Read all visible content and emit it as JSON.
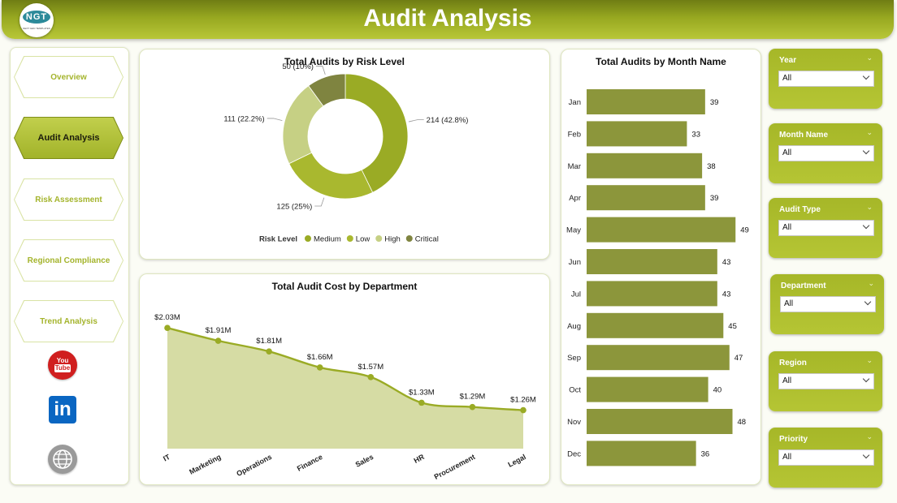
{
  "header": {
    "title": "Audit Analysis",
    "logo_text": "NGT",
    "logo_subtext": "NEXT GEN TEMPLATES"
  },
  "nav": {
    "items": [
      {
        "label": "Overview",
        "active": false
      },
      {
        "label": "Audit Analysis",
        "active": true
      },
      {
        "label": "Risk Assessment",
        "active": false
      },
      {
        "label": "Regional Compliance",
        "active": false
      },
      {
        "label": "Trend Analysis",
        "active": false
      }
    ],
    "social": {
      "youtube_top": "You",
      "youtube_bottom": "Tube",
      "linkedin": "in"
    }
  },
  "slicers": [
    {
      "label": "Year",
      "value": "All"
    },
    {
      "label": "Month Name",
      "value": "All"
    },
    {
      "label": "Audit Type",
      "value": "All"
    },
    {
      "label": "Department",
      "value": "All"
    },
    {
      "label": "Region",
      "value": "All"
    },
    {
      "label": "Priority",
      "value": "All"
    }
  ],
  "colors": {
    "accent": "#a4b42c",
    "medium": "#9aab25",
    "low": "#a9b82f",
    "high": "#c6d084",
    "critical": "#7f8440",
    "bar": "#8c963b",
    "area": "#d6dca4",
    "line": "#9aab25"
  },
  "chart_data": [
    {
      "type": "pie",
      "title": "Total Audits by Risk Level",
      "legend_title": "Risk Level",
      "legend": "bottom",
      "slices": [
        {
          "name": "Medium",
          "value": 214,
          "label": "214 (42.8%)",
          "color": "#9aab25"
        },
        {
          "name": "Low",
          "value": 125,
          "label": "125 (25%)",
          "color": "#a9b82f"
        },
        {
          "name": "High",
          "value": 111,
          "label": "111 (22.2%)",
          "color": "#c6d084"
        },
        {
          "name": "Critical",
          "value": 50,
          "label": "50 (10%)",
          "color": "#7f8440"
        }
      ]
    },
    {
      "type": "area",
      "title": "Total Audit Cost by Department",
      "categories": [
        "IT",
        "Marketing",
        "Operations",
        "Finance",
        "Sales",
        "HR",
        "Procurement",
        "Legal"
      ],
      "values": [
        2.03,
        1.91,
        1.81,
        1.66,
        1.57,
        1.33,
        1.29,
        1.26
      ],
      "labels": [
        "$2.03M",
        "$1.91M",
        "$1.81M",
        "$1.66M",
        "$1.57M",
        "$1.33M",
        "$1.29M",
        "$1.26M"
      ],
      "ylim": [
        0.9,
        2.1
      ]
    },
    {
      "type": "bar",
      "orientation": "horizontal",
      "title": "Total Audits by Month Name",
      "categories": [
        "Jan",
        "Feb",
        "Mar",
        "Apr",
        "May",
        "Jun",
        "Jul",
        "Aug",
        "Sep",
        "Oct",
        "Nov",
        "Dec"
      ],
      "values": [
        39,
        33,
        38,
        39,
        49,
        43,
        43,
        45,
        47,
        40,
        48,
        36
      ],
      "xlim": [
        0,
        50
      ]
    }
  ]
}
